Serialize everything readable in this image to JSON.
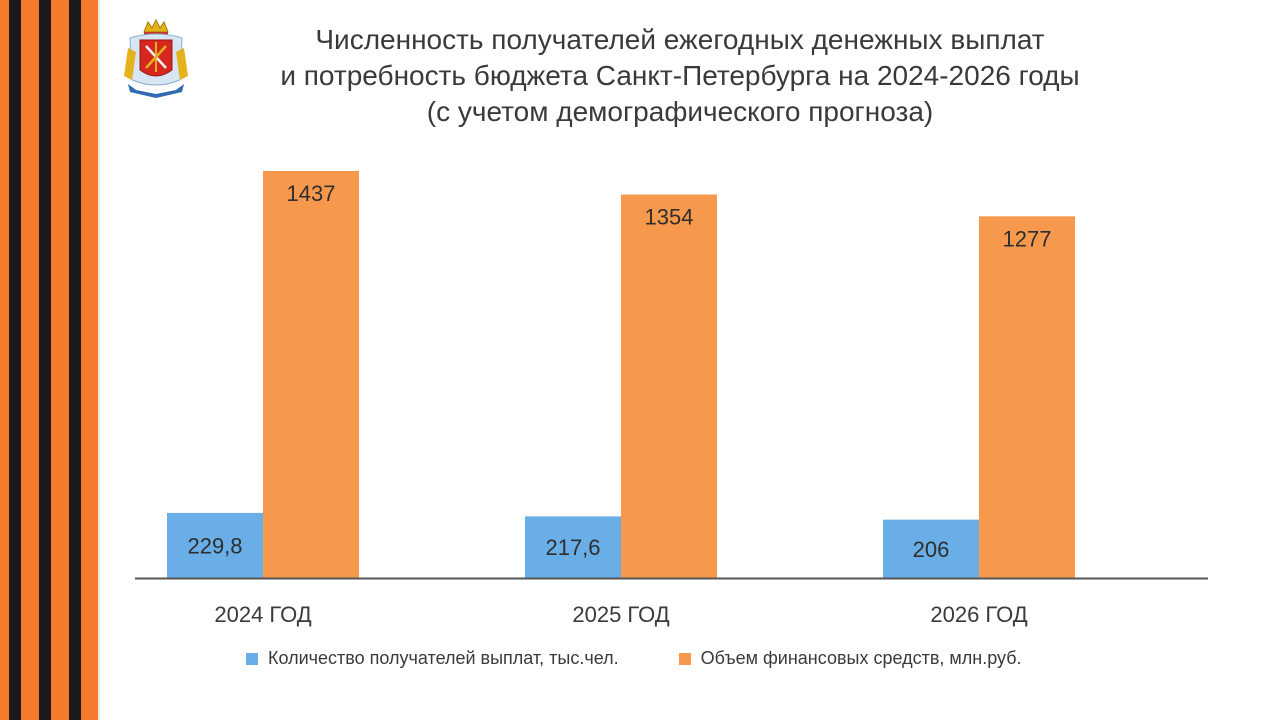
{
  "header": {
    "title_lines": [
      "Численность получателей ежегодных денежных выплат",
      "и потребность бюджета Санкт-Петербурга на 2024-2026 годы",
      "(с учетом демографического прогноза)"
    ]
  },
  "colors": {
    "series_recipients": "#6aaee8",
    "series_funds": "#f7994d",
    "ribbon_orange": "#f47a2e",
    "ribbon_black": "#1a1a1a",
    "text": "#3a3a3a",
    "axis": "#555555"
  },
  "emblem": {
    "icon": "st-petersburg-coat-of-arms-icon"
  },
  "chart_data": {
    "type": "bar",
    "title": "",
    "categories": [
      "2024 ГОД",
      "2025 ГОД",
      "2026 ГОД"
    ],
    "series": [
      {
        "name": "Количество получателей выплат, тыс.чел.",
        "values": [
          229.8,
          217.6,
          206
        ],
        "labels": [
          "229,8",
          "217,6",
          "206"
        ]
      },
      {
        "name": "Объем финансовых средств, млн.руб.",
        "values": [
          1437,
          1354,
          1277
        ],
        "labels": [
          "1437",
          "1354",
          "1277"
        ]
      }
    ],
    "ylim": [
      0,
      1437
    ],
    "grid": false,
    "legend": "bottom",
    "xlabel": "",
    "ylabel": ""
  }
}
